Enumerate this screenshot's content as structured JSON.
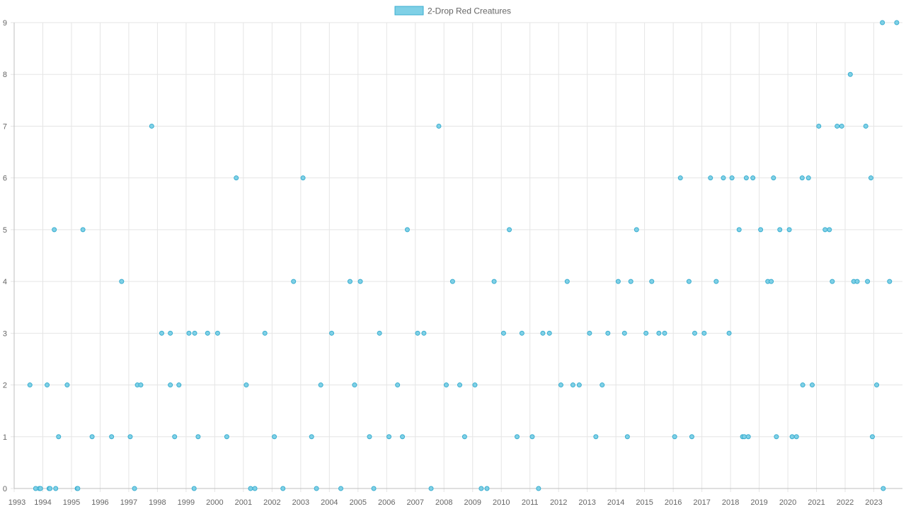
{
  "chart_data": {
    "type": "scatter",
    "series": [
      {
        "name": "2-Drop Red Creatures",
        "fill": "#7fd0e6",
        "stroke": "#3aaed0",
        "points": [
          [
            1993.55,
            2
          ],
          [
            1993.75,
            0
          ],
          [
            1993.88,
            0
          ],
          [
            1993.92,
            0
          ],
          [
            1994.15,
            2
          ],
          [
            1994.22,
            0
          ],
          [
            1994.25,
            0
          ],
          [
            1994.4,
            5
          ],
          [
            1994.45,
            0
          ],
          [
            1994.55,
            1
          ],
          [
            1994.85,
            2
          ],
          [
            1995.2,
            0
          ],
          [
            1995.22,
            0
          ],
          [
            1995.4,
            5
          ],
          [
            1995.72,
            1
          ],
          [
            1996.4,
            1
          ],
          [
            1996.75,
            4
          ],
          [
            1997.05,
            1
          ],
          [
            1997.2,
            0
          ],
          [
            1997.3,
            2
          ],
          [
            1997.42,
            2
          ],
          [
            1997.8,
            7
          ],
          [
            1998.15,
            3
          ],
          [
            1998.45,
            2
          ],
          [
            1998.45,
            3
          ],
          [
            1998.6,
            1
          ],
          [
            1998.75,
            2
          ],
          [
            1999.1,
            3
          ],
          [
            1999.28,
            0
          ],
          [
            1999.3,
            3
          ],
          [
            1999.42,
            1
          ],
          [
            1999.75,
            3
          ],
          [
            2000.1,
            3
          ],
          [
            2000.42,
            1
          ],
          [
            2000.75,
            6
          ],
          [
            2001.1,
            2
          ],
          [
            2001.25,
            0
          ],
          [
            2001.4,
            0
          ],
          [
            2001.75,
            3
          ],
          [
            2002.08,
            1
          ],
          [
            2002.38,
            0
          ],
          [
            2002.75,
            4
          ],
          [
            2003.08,
            6
          ],
          [
            2003.38,
            1
          ],
          [
            2003.55,
            0
          ],
          [
            2003.7,
            2
          ],
          [
            2004.08,
            3
          ],
          [
            2004.4,
            0
          ],
          [
            2004.72,
            4
          ],
          [
            2004.88,
            2
          ],
          [
            2005.08,
            4
          ],
          [
            2005.4,
            1
          ],
          [
            2005.55,
            0
          ],
          [
            2005.75,
            3
          ],
          [
            2006.08,
            1
          ],
          [
            2006.38,
            2
          ],
          [
            2006.55,
            1
          ],
          [
            2006.72,
            5
          ],
          [
            2007.08,
            3
          ],
          [
            2007.3,
            3
          ],
          [
            2007.55,
            0
          ],
          [
            2007.82,
            7
          ],
          [
            2008.08,
            2
          ],
          [
            2008.3,
            4
          ],
          [
            2008.55,
            2
          ],
          [
            2008.72,
            1
          ],
          [
            2009.08,
            2
          ],
          [
            2009.3,
            0
          ],
          [
            2009.5,
            0
          ],
          [
            2009.75,
            4
          ],
          [
            2010.08,
            3
          ],
          [
            2010.28,
            5
          ],
          [
            2010.55,
            1
          ],
          [
            2010.72,
            3
          ],
          [
            2011.08,
            1
          ],
          [
            2011.3,
            0
          ],
          [
            2011.45,
            3
          ],
          [
            2011.68,
            3
          ],
          [
            2012.08,
            2
          ],
          [
            2012.3,
            4
          ],
          [
            2012.5,
            2
          ],
          [
            2012.72,
            2
          ],
          [
            2013.08,
            3
          ],
          [
            2013.3,
            1
          ],
          [
            2013.52,
            2
          ],
          [
            2013.72,
            3
          ],
          [
            2014.08,
            4
          ],
          [
            2014.3,
            3
          ],
          [
            2014.4,
            1
          ],
          [
            2014.52,
            4
          ],
          [
            2014.72,
            5
          ],
          [
            2015.05,
            3
          ],
          [
            2015.25,
            4
          ],
          [
            2015.5,
            3
          ],
          [
            2015.7,
            3
          ],
          [
            2016.05,
            1
          ],
          [
            2016.25,
            6
          ],
          [
            2016.55,
            4
          ],
          [
            2016.65,
            1
          ],
          [
            2016.75,
            3
          ],
          [
            2017.08,
            3
          ],
          [
            2017.3,
            6
          ],
          [
            2017.5,
            4
          ],
          [
            2017.75,
            6
          ],
          [
            2017.95,
            3
          ],
          [
            2018.05,
            6
          ],
          [
            2018.3,
            5
          ],
          [
            2018.42,
            1
          ],
          [
            2018.48,
            1
          ],
          [
            2018.55,
            6
          ],
          [
            2018.62,
            1
          ],
          [
            2018.78,
            6
          ],
          [
            2019.05,
            5
          ],
          [
            2019.3,
            4
          ],
          [
            2019.42,
            4
          ],
          [
            2019.5,
            6
          ],
          [
            2019.6,
            1
          ],
          [
            2019.72,
            5
          ],
          [
            2020.05,
            5
          ],
          [
            2020.15,
            1
          ],
          [
            2020.3,
            1
          ],
          [
            2020.5,
            6
          ],
          [
            2020.52,
            2
          ],
          [
            2020.72,
            6
          ],
          [
            2020.85,
            2
          ],
          [
            2021.08,
            7
          ],
          [
            2021.3,
            5
          ],
          [
            2021.45,
            5
          ],
          [
            2021.55,
            4
          ],
          [
            2021.72,
            7
          ],
          [
            2021.88,
            7
          ],
          [
            2022.18,
            8
          ],
          [
            2022.3,
            4
          ],
          [
            2022.42,
            4
          ],
          [
            2022.72,
            7
          ],
          [
            2022.78,
            4
          ],
          [
            2022.9,
            6
          ],
          [
            2022.95,
            1
          ],
          [
            2023.1,
            2
          ],
          [
            2023.3,
            9
          ],
          [
            2023.33,
            0
          ],
          [
            2023.55,
            4
          ],
          [
            2023.8,
            9
          ]
        ]
      }
    ],
    "x_ticks": [
      "1993",
      "1994",
      "1995",
      "1996",
      "1997",
      "1998",
      "1999",
      "2000",
      "2001",
      "2002",
      "2003",
      "2004",
      "2005",
      "2006",
      "2007",
      "2008",
      "2009",
      "2010",
      "2011",
      "2012",
      "2013",
      "2014",
      "2015",
      "2016",
      "2017",
      "2018",
      "2019",
      "2020",
      "2021",
      "2022",
      "2023"
    ],
    "y_ticks": [
      "0",
      "1",
      "2",
      "3",
      "4",
      "5",
      "6",
      "7",
      "8",
      "9"
    ],
    "xlim": [
      1993,
      2024
    ],
    "ylim": [
      0,
      9
    ],
    "grid": true,
    "legend_position": "top-center",
    "colors": {
      "grid": "#e5e5e5",
      "axis": "#bfbfbf",
      "tick_text": "#666666"
    }
  }
}
